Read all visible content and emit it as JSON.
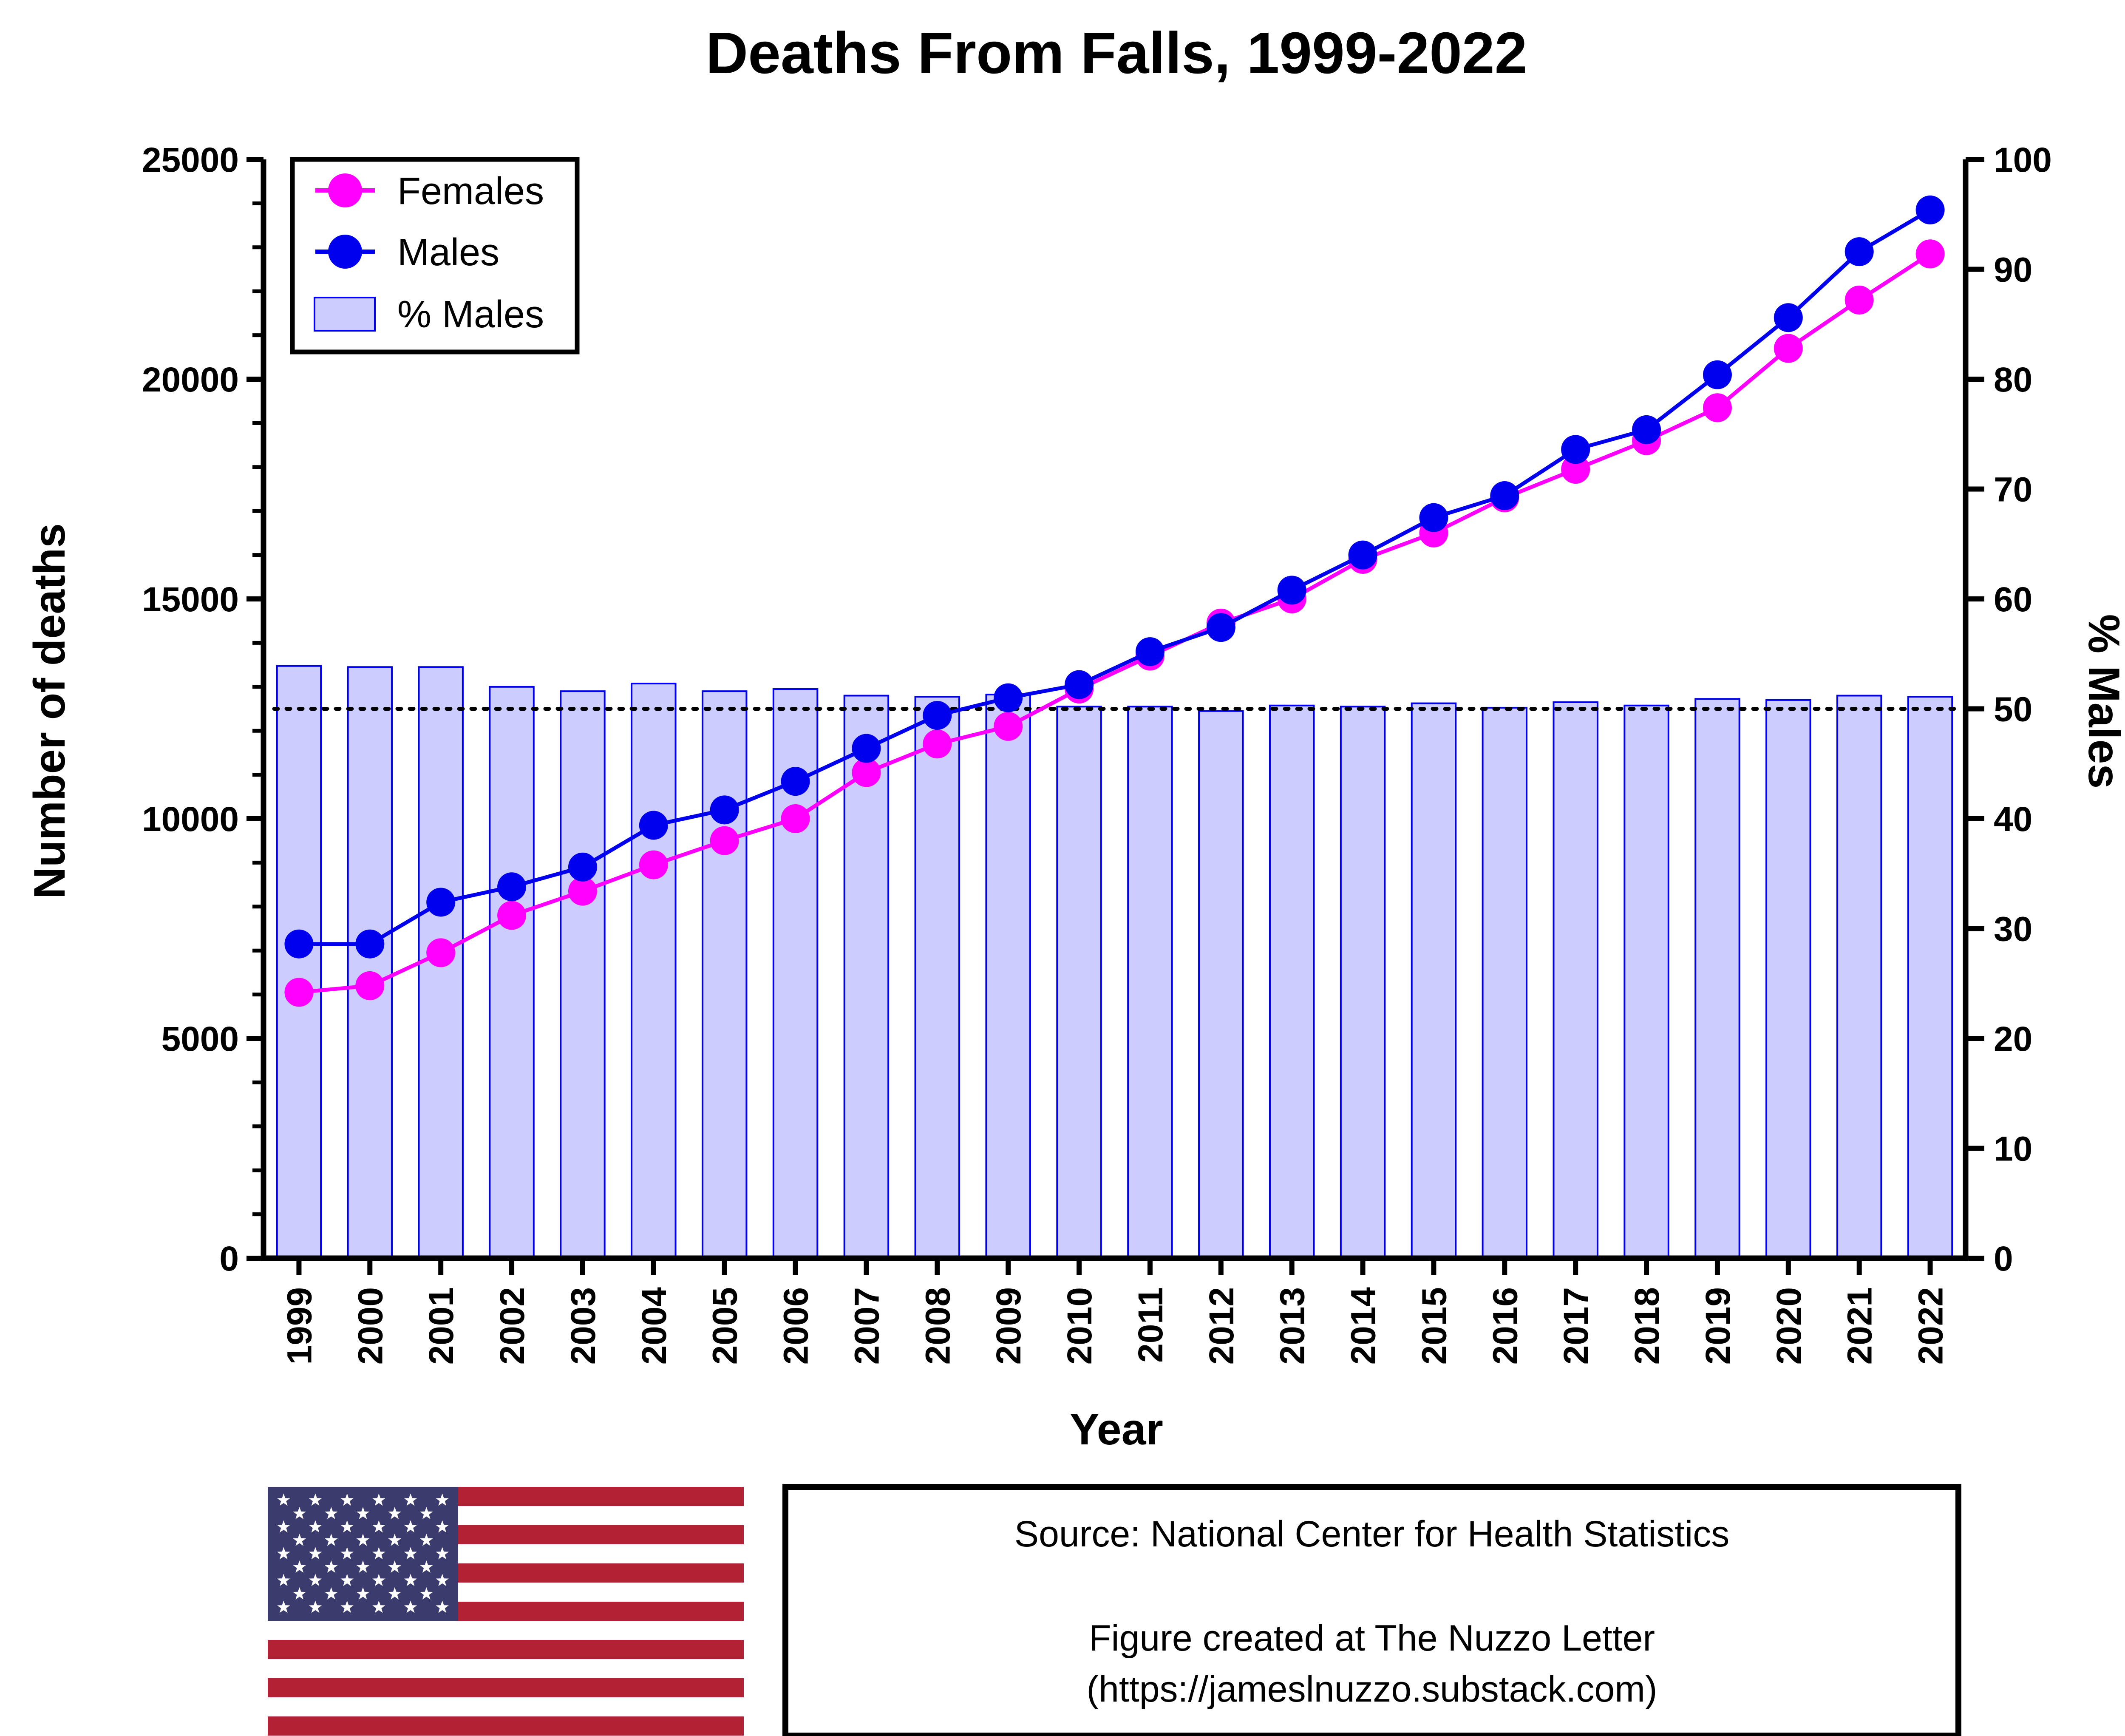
{
  "chart_data": {
    "type": "bar+line",
    "title": "Deaths From Falls, 1999-2022",
    "xlabel": "Year",
    "ylabel": "Number of deaths",
    "y2label": "% Males",
    "ylim": [
      0,
      25000
    ],
    "y2lim": [
      0,
      100
    ],
    "yticks": [
      "0",
      "5000",
      "10000",
      "15000",
      "20000",
      "25000"
    ],
    "y2ticks": [
      "0",
      "10",
      "20",
      "30",
      "40",
      "50",
      "60",
      "70",
      "80",
      "90",
      "100"
    ],
    "categories": [
      "1999",
      "2000",
      "2001",
      "2002",
      "2003",
      "2004",
      "2005",
      "2006",
      "2007",
      "2008",
      "2009",
      "2010",
      "2011",
      "2012",
      "2013",
      "2014",
      "2015",
      "2016",
      "2017",
      "2018",
      "2019",
      "2020",
      "2021",
      "2022"
    ],
    "series": [
      {
        "name": "Females",
        "type": "line",
        "axis": "left",
        "color": "#ff00ff",
        "values": [
          6050,
          6200,
          6950,
          7800,
          8350,
          8950,
          9500,
          10000,
          11050,
          11700,
          12100,
          12950,
          13700,
          14450,
          15000,
          15900,
          16500,
          17300,
          17950,
          18600,
          19350,
          20700,
          21800,
          22850
        ]
      },
      {
        "name": "Males",
        "type": "line",
        "axis": "left",
        "color": "#0000ee",
        "values": [
          7150,
          7150,
          8100,
          8450,
          8900,
          9850,
          10200,
          10850,
          11600,
          12350,
          12750,
          13050,
          13800,
          14350,
          15200,
          16000,
          16850,
          17350,
          18400,
          18850,
          20100,
          21400,
          22900,
          23850
        ]
      },
      {
        "name": "% Males",
        "type": "bar",
        "axis": "right",
        "color": "#ccccff",
        "edge": "#0000ee",
        "values": [
          53.9,
          53.8,
          53.8,
          52.0,
          51.6,
          52.3,
          51.6,
          51.8,
          51.2,
          51.1,
          51.3,
          50.2,
          50.2,
          49.8,
          50.3,
          50.2,
          50.5,
          50.1,
          50.6,
          50.3,
          50.9,
          50.8,
          51.2,
          51.1
        ]
      }
    ],
    "reference_line": {
      "axis": "right",
      "value": 50,
      "style": "dotted"
    },
    "legend": {
      "placement": "top-left",
      "entries": [
        "Females",
        "Males",
        "% Males"
      ]
    }
  },
  "footer": {
    "flag": "us-flag-icon",
    "source_line": "Source: National Center for Health Statistics",
    "credit_line1": "Figure created at The Nuzzo Letter",
    "credit_line2": "(https://jameslnuzzo.substack.com)"
  }
}
